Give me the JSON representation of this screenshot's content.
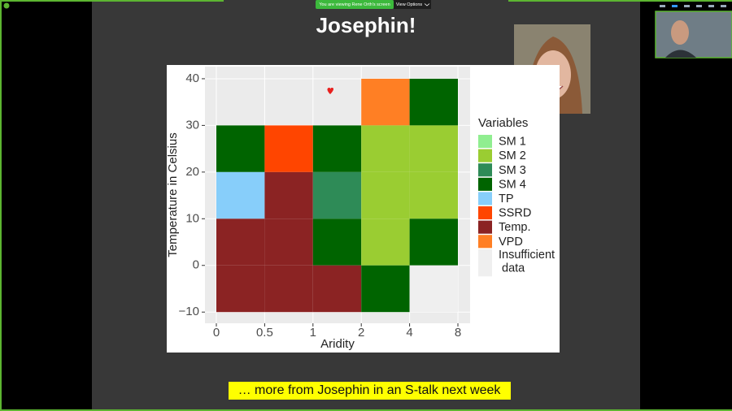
{
  "zoom_bar": {
    "sharing_notice": "You are viewing Rene Orth's screen",
    "view_options": "View Options"
  },
  "slide": {
    "title": "Josephin!",
    "caption": "… more from Josephin in an S-talk next week"
  },
  "chart_data": {
    "type": "tile",
    "xlabel": "Aridity",
    "ylabel": "Temperature in Celsius",
    "x": [
      "0",
      "0.5",
      "1",
      "2",
      "4",
      "8"
    ],
    "ylim": [
      -12.4,
      42.6
    ],
    "yticks": [
      {
        "value": -10,
        "label": "−10"
      },
      0,
      10,
      20,
      30,
      40
    ],
    "grid": true,
    "legend": "right",
    "legend_title": "Variables",
    "series": [
      {
        "name": "SM 1",
        "color": "#90ee90"
      },
      {
        "name": "SM 2",
        "color": "#9acd32"
      },
      {
        "name": "SM 3",
        "color": "#2e8b57"
      },
      {
        "name": "SM 4",
        "color": "#006400"
      },
      {
        "name": "TP",
        "color": "#87cefa"
      },
      {
        "name": "SSRD",
        "color": "#ff4500"
      },
      {
        "name": "Temp.",
        "color": "#8b2323"
      },
      {
        "name": "VPD",
        "color": "#ff7f24"
      },
      {
        "name": "Insufficient\n data",
        "color": "#efefef"
      }
    ],
    "rows": [
      {
        "y": [
          30,
          40
        ],
        "cells": [
          null,
          null,
          null,
          "VPD",
          "SM 4"
        ]
      },
      {
        "y": [
          20,
          30
        ],
        "cells": [
          "SM 4",
          "SSRD",
          "SM 4",
          "SM 2",
          "SM 2"
        ]
      },
      {
        "y": [
          10,
          20
        ],
        "cells": [
          "TP",
          "Temp.",
          "SM 3",
          "SM 2",
          "SM 2"
        ]
      },
      {
        "y": [
          0,
          10
        ],
        "cells": [
          "Temp.",
          "Temp.",
          "SM 4",
          "SM 2",
          "SM 4"
        ]
      },
      {
        "y": [
          -10,
          0
        ],
        "cells": [
          "Temp.",
          "Temp.",
          "Temp.",
          "SM 4",
          "Insufficient\n data"
        ]
      }
    ]
  }
}
